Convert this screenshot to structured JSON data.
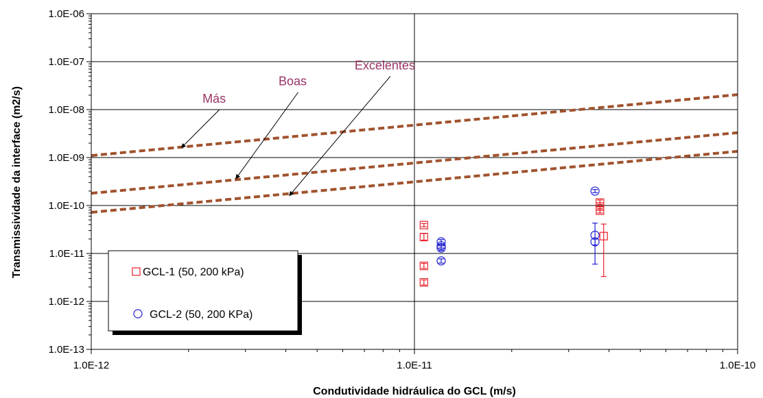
{
  "chart_data": {
    "type": "scatter",
    "title": "",
    "xlabel": "Condutividade hidráulica do GCL (m/s)",
    "ylabel": "Transmissividade da interface (m2/s)",
    "x_scale": "log",
    "y_scale": "log",
    "xlim": [
      1e-12,
      1e-10
    ],
    "ylim": [
      1e-13,
      1e-06
    ],
    "grid": true,
    "legend_position": "bottom-left",
    "x_ticks": [
      {
        "value": 1e-12,
        "label": "1.0E-12"
      },
      {
        "value": 1e-11,
        "label": "1.0E-11"
      },
      {
        "value": 1e-10,
        "label": "1.0E-10"
      }
    ],
    "y_ticks": [
      {
        "value": 1e-06,
        "label": "1.0E-06"
      },
      {
        "value": 1e-07,
        "label": "1.0E-07"
      },
      {
        "value": 1e-08,
        "label": "1.0E-08"
      },
      {
        "value": 1e-09,
        "label": "1.0E-09"
      },
      {
        "value": 1e-10,
        "label": "1.0E-10"
      },
      {
        "value": 1e-11,
        "label": "1.0E-11"
      },
      {
        "value": 1e-12,
        "label": "1.0E-12"
      },
      {
        "value": 1e-13,
        "label": "1.0E-13"
      }
    ],
    "reference_lines": [
      {
        "name": "Más",
        "color": "#a0522d",
        "style": "dashed",
        "points": [
          [
            1e-12,
            1.1e-09
          ],
          [
            1e-10,
            2.05e-08
          ]
        ]
      },
      {
        "name": "Boas",
        "color": "#a0522d",
        "style": "dashed",
        "points": [
          [
            1e-12,
            1.8e-10
          ],
          [
            1e-10,
            3.3e-09
          ]
        ]
      },
      {
        "name": "Excelentes",
        "color": "#a0522d",
        "style": "dashed",
        "points": [
          [
            1e-12,
            7.2e-11
          ],
          [
            1e-10,
            1.35e-09
          ]
        ]
      }
    ],
    "annotations": [
      {
        "text": "Más",
        "label_at": [
          2.4e-12,
          1.4e-08
        ],
        "arrow_to": [
          1.9e-12,
          1.6e-09
        ]
      },
      {
        "text": "Boas",
        "label_at": [
          4.2e-12,
          3.2e-08
        ],
        "arrow_to": [
          2.8e-12,
          3.6e-10
        ]
      },
      {
        "text": "Excelentes",
        "label_at": [
          8.1e-12,
          6.9e-08
        ],
        "arrow_to": [
          4.1e-12,
          1.6e-10
        ]
      }
    ],
    "series": [
      {
        "name": "GCL-1 (50, 200 kPa)",
        "marker": "square",
        "color": "#e8202a",
        "points": [
          {
            "x": 1.07e-11,
            "y": 3.9e-11,
            "err_low": 3.6e-11,
            "err_high": 4.2e-11
          },
          {
            "x": 1.07e-11,
            "y": 2.2e-11,
            "err_low": 1.9e-11,
            "err_high": 2.6e-11
          },
          {
            "x": 1.07e-11,
            "y": 5.5e-12,
            "err_low": 4.9e-12,
            "err_high": 6.2e-12
          },
          {
            "x": 1.07e-11,
            "y": 2.5e-12,
            "err_low": 2.2e-12,
            "err_high": 2.8e-12
          },
          {
            "x": 3.75e-11,
            "y": 1.15e-10,
            "err_low": 1.05e-10,
            "err_high": 1.3e-10
          },
          {
            "x": 3.75e-11,
            "y": 9.5e-11,
            "err_low": 8.5e-11,
            "err_high": 1.05e-10
          },
          {
            "x": 3.75e-11,
            "y": 7.8e-11,
            "err_low": 7e-11,
            "err_high": 8.6e-11
          },
          {
            "x": 3.85e-11,
            "y": 2.3e-11,
            "err_low": 3.3e-12,
            "err_high": 4.1e-11
          }
        ]
      },
      {
        "name": "GCL-2 (50, 200 KPa)",
        "marker": "circle",
        "color": "#1f1fd1",
        "points": [
          {
            "x": 1.21e-11,
            "y": 1.75e-11,
            "err_low": 1.55e-11,
            "err_high": 1.95e-11
          },
          {
            "x": 1.21e-11,
            "y": 1.45e-11,
            "err_low": 1.3e-11,
            "err_high": 1.6e-11
          },
          {
            "x": 1.21e-11,
            "y": 1.3e-11,
            "err_low": 1.15e-11,
            "err_high": 1.45e-11
          },
          {
            "x": 1.21e-11,
            "y": 7e-12,
            "err_low": 6.3e-12,
            "err_high": 7.7e-12
          },
          {
            "x": 3.62e-11,
            "y": 2e-10,
            "err_low": 1.85e-10,
            "err_high": 2.15e-10
          },
          {
            "x": 3.62e-11,
            "y": 2.4e-11,
            "err_low": 6e-12,
            "err_high": 4.3e-11
          },
          {
            "x": 3.62e-11,
            "y": 1.75e-11,
            "err_low": 1.5e-11,
            "err_high": 2e-11
          }
        ]
      }
    ]
  }
}
